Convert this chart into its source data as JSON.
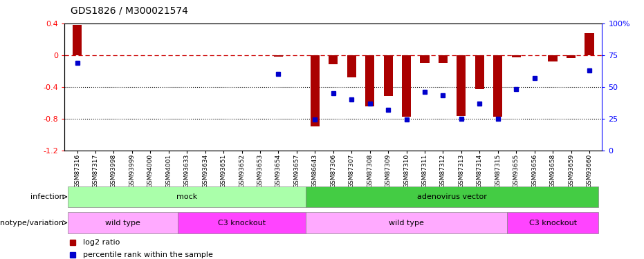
{
  "title": "GDS1826 / M300021574",
  "samples": [
    "GSM87316",
    "GSM87317",
    "GSM93998",
    "GSM93999",
    "GSM94000",
    "GSM94001",
    "GSM93633",
    "GSM93634",
    "GSM93651",
    "GSM93652",
    "GSM93653",
    "GSM93654",
    "GSM93657",
    "GSM86643",
    "GSM87306",
    "GSM87307",
    "GSM87308",
    "GSM87309",
    "GSM87310",
    "GSM87311",
    "GSM87312",
    "GSM87313",
    "GSM87314",
    "GSM87315",
    "GSM93655",
    "GSM93656",
    "GSM93658",
    "GSM93659",
    "GSM93660"
  ],
  "log2_ratio": [
    0.38,
    0.0,
    0.0,
    0.0,
    0.0,
    0.0,
    0.0,
    0.0,
    0.0,
    0.0,
    0.0,
    -0.02,
    0.0,
    -0.9,
    -0.12,
    -0.28,
    -0.65,
    -0.52,
    -0.78,
    -0.1,
    -0.1,
    -0.77,
    -0.43,
    -0.78,
    -0.03,
    0.0,
    -0.08,
    -0.04,
    0.28
  ],
  "percentile": [
    69,
    0,
    0,
    0,
    0,
    0,
    0,
    0,
    0,
    0,
    0,
    60,
    0,
    24,
    45,
    40,
    37,
    32,
    24,
    46,
    43,
    25,
    37,
    25,
    48,
    57,
    0,
    0,
    63
  ],
  "infection": [
    {
      "label": "mock",
      "start": 0,
      "end": 13,
      "color": "#AAFFAA"
    },
    {
      "label": "adenovirus vector",
      "start": 13,
      "end": 29,
      "color": "#44CC44"
    }
  ],
  "genotype": [
    {
      "label": "wild type",
      "start": 0,
      "end": 6,
      "color": "#FFAAFF"
    },
    {
      "label": "C3 knockout",
      "start": 6,
      "end": 13,
      "color": "#FF44FF"
    },
    {
      "label": "wild type",
      "start": 13,
      "end": 24,
      "color": "#FFAAFF"
    },
    {
      "label": "C3 knockout",
      "start": 24,
      "end": 29,
      "color": "#FF44FF"
    }
  ],
  "ylim": [
    -1.2,
    0.4
  ],
  "right_ylim": [
    0,
    100
  ],
  "bar_color": "#AA0000",
  "dot_color": "#0000CC",
  "dashed_line_color": "#CC0000",
  "background_color": "#FFFFFF"
}
